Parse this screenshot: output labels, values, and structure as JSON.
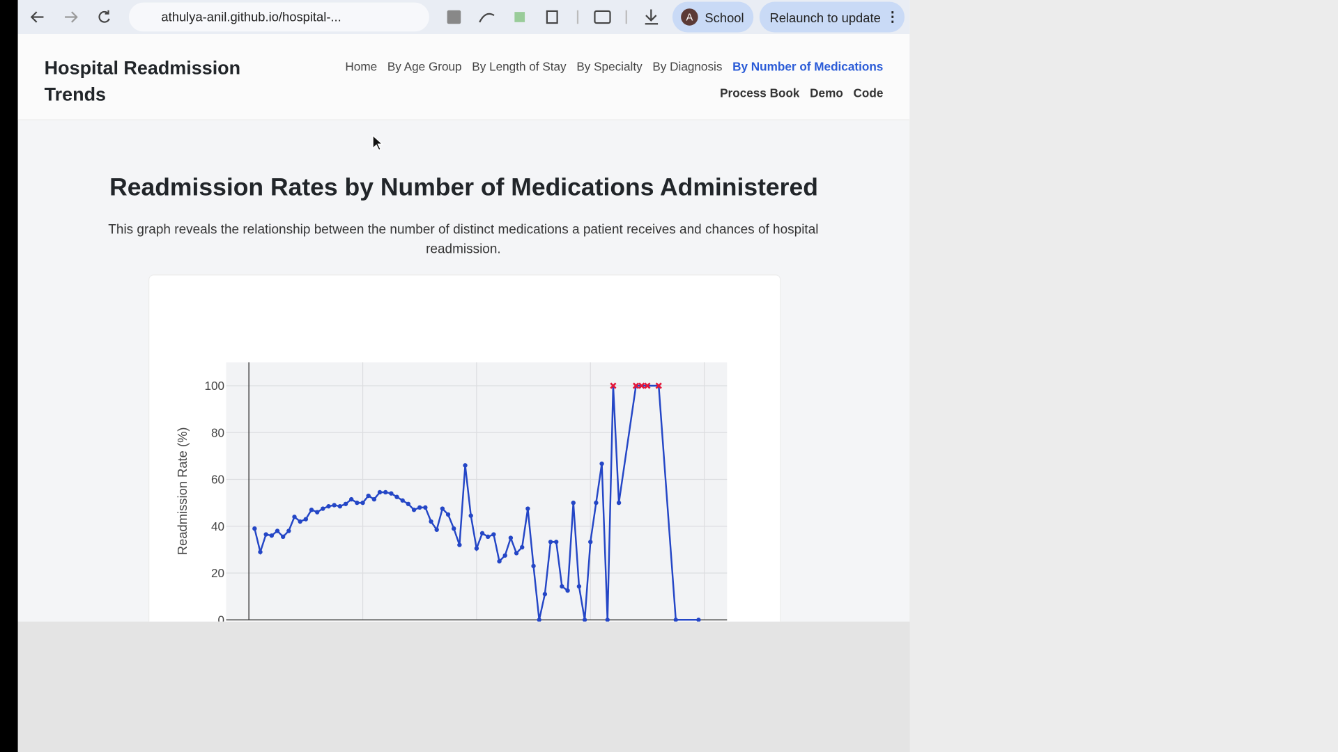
{
  "browser": {
    "url": "athulya-anil.github.io/hospital-...",
    "profile_initial": "A",
    "profile": "School",
    "update_button": "Relaunch to update"
  },
  "site": {
    "title": "Hospital Readmission Trends",
    "nav": [
      "Home",
      "By Age Group",
      "By Length of Stay",
      "By Specialty",
      "By Diagnosis",
      "By Number of Medications",
      "Process Book",
      "Demo",
      "Code"
    ]
  },
  "page": {
    "heading": "Readmission Rates by Number of Medications Administered",
    "description": "This graph reveals the relationship between the number of distinct medications a patient receives and chances of hospital readmission."
  },
  "chart_data": {
    "type": "line",
    "ylabel": "Readmission Rate (%)",
    "x": [
      1,
      2,
      3,
      4,
      5,
      6,
      7,
      8,
      9,
      10,
      11,
      12,
      13,
      14,
      15,
      16,
      17,
      18,
      19,
      20,
      21,
      22,
      23,
      24,
      25,
      26,
      27,
      28,
      29,
      30,
      31,
      32,
      33,
      34,
      35,
      36,
      37,
      38,
      39,
      40,
      41,
      42,
      43,
      44,
      45,
      46,
      47,
      48,
      49,
      50,
      51,
      52,
      53,
      54,
      55,
      56,
      57,
      58,
      59,
      60,
      61,
      62,
      63,
      64,
      65,
      68,
      69,
      70,
      72,
      75,
      79
    ],
    "series": [
      {
        "color": "#2446c6",
        "values": [
          39,
          29,
          36.5,
          36,
          38,
          35.5,
          38,
          44,
          42,
          43,
          47,
          46,
          47.5,
          48.5,
          49,
          48.5,
          49.5,
          51.5,
          50,
          50,
          53,
          51.5,
          54.5,
          54.5,
          54,
          52.5,
          51,
          49.5,
          47,
          48,
          48,
          42,
          38.5,
          47.5,
          45,
          39,
          32,
          66,
          44.5,
          30.5,
          37,
          35.5,
          36.5,
          25,
          27.5,
          35,
          28.5,
          31,
          47.5,
          23,
          0,
          11,
          33.3,
          33.3,
          14.3,
          12.5,
          50,
          14.3,
          0,
          33.3,
          50,
          66.7,
          0,
          100,
          50,
          100,
          100,
          100,
          100,
          0,
          0
        ]
      }
    ],
    "peak_marker_color": "#e3173a",
    "xlim": [
      -4,
      84
    ],
    "ylim": [
      0,
      110
    ],
    "xticks": [
      0,
      20,
      40,
      60,
      80
    ],
    "yticks": [
      0,
      20,
      40,
      60,
      80,
      100
    ],
    "grid": true
  }
}
